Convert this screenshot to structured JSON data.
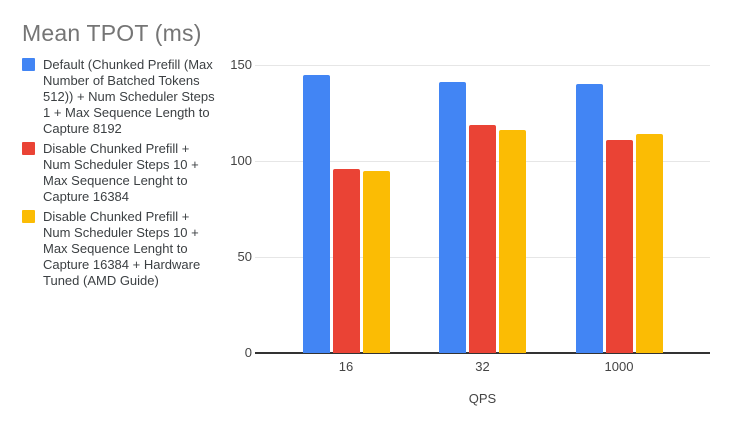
{
  "title": "Mean TPOT (ms)",
  "colors": {
    "series_blue": "#4285F4",
    "series_red": "#EA4335",
    "series_yellow": "#FBBC04",
    "title_text": "#757575",
    "legend_text": "#3C4043",
    "axis_text": "#444444",
    "gridline": "#E6E6E6",
    "baseline": "#333333",
    "background": "#FFFFFF"
  },
  "legend": {
    "position": "left",
    "items": [
      {
        "color": "#4285F4",
        "lines": [
          "Default (Chunked Prefill (Max",
          "Number of Batched Tokens",
          "512)) + Num Scheduler Steps",
          "1 + Max Sequence Length to",
          "Capture 8192"
        ]
      },
      {
        "color": "#EA4335",
        "lines": [
          "Disable Chunked Prefill +",
          "Num Scheduler Steps 10 +",
          "Max Sequence Lenght to",
          "Capture 16384"
        ]
      },
      {
        "color": "#FBBC04",
        "lines": [
          "Disable Chunked Prefill +",
          "Num Scheduler Steps 10 +",
          "Max Sequence Lenght to",
          "Capture 16384 + Hardware",
          "Tuned (AMD Guide)"
        ]
      }
    ]
  },
  "chart_data": {
    "type": "bar",
    "title": "Mean TPOT (ms)",
    "xlabel": "QPS",
    "ylabel": "",
    "categories": [
      "16",
      "32",
      "1000"
    ],
    "series": [
      {
        "name": "Default (Chunked Prefill (Max Number of Batched Tokens 512)) + Num Scheduler Steps 1 + Max Sequence Length to Capture 8192",
        "color": "#4285F4",
        "values": [
          145,
          141,
          140
        ]
      },
      {
        "name": "Disable Chunked Prefill + Num Scheduler Steps 10 + Max Sequence Lenght to Capture 16384",
        "color": "#EA4335",
        "values": [
          96,
          119,
          111
        ]
      },
      {
        "name": "Disable Chunked Prefill + Num Scheduler Steps 10 + Max Sequence Lenght to Capture 16384 + Hardware Tuned (AMD Guide)",
        "color": "#FBBC04",
        "values": [
          95,
          116,
          114
        ]
      }
    ],
    "ylim": [
      0,
      150
    ],
    "yticks": [
      0,
      50,
      100,
      150
    ],
    "grid": true,
    "legend_position": "left"
  }
}
